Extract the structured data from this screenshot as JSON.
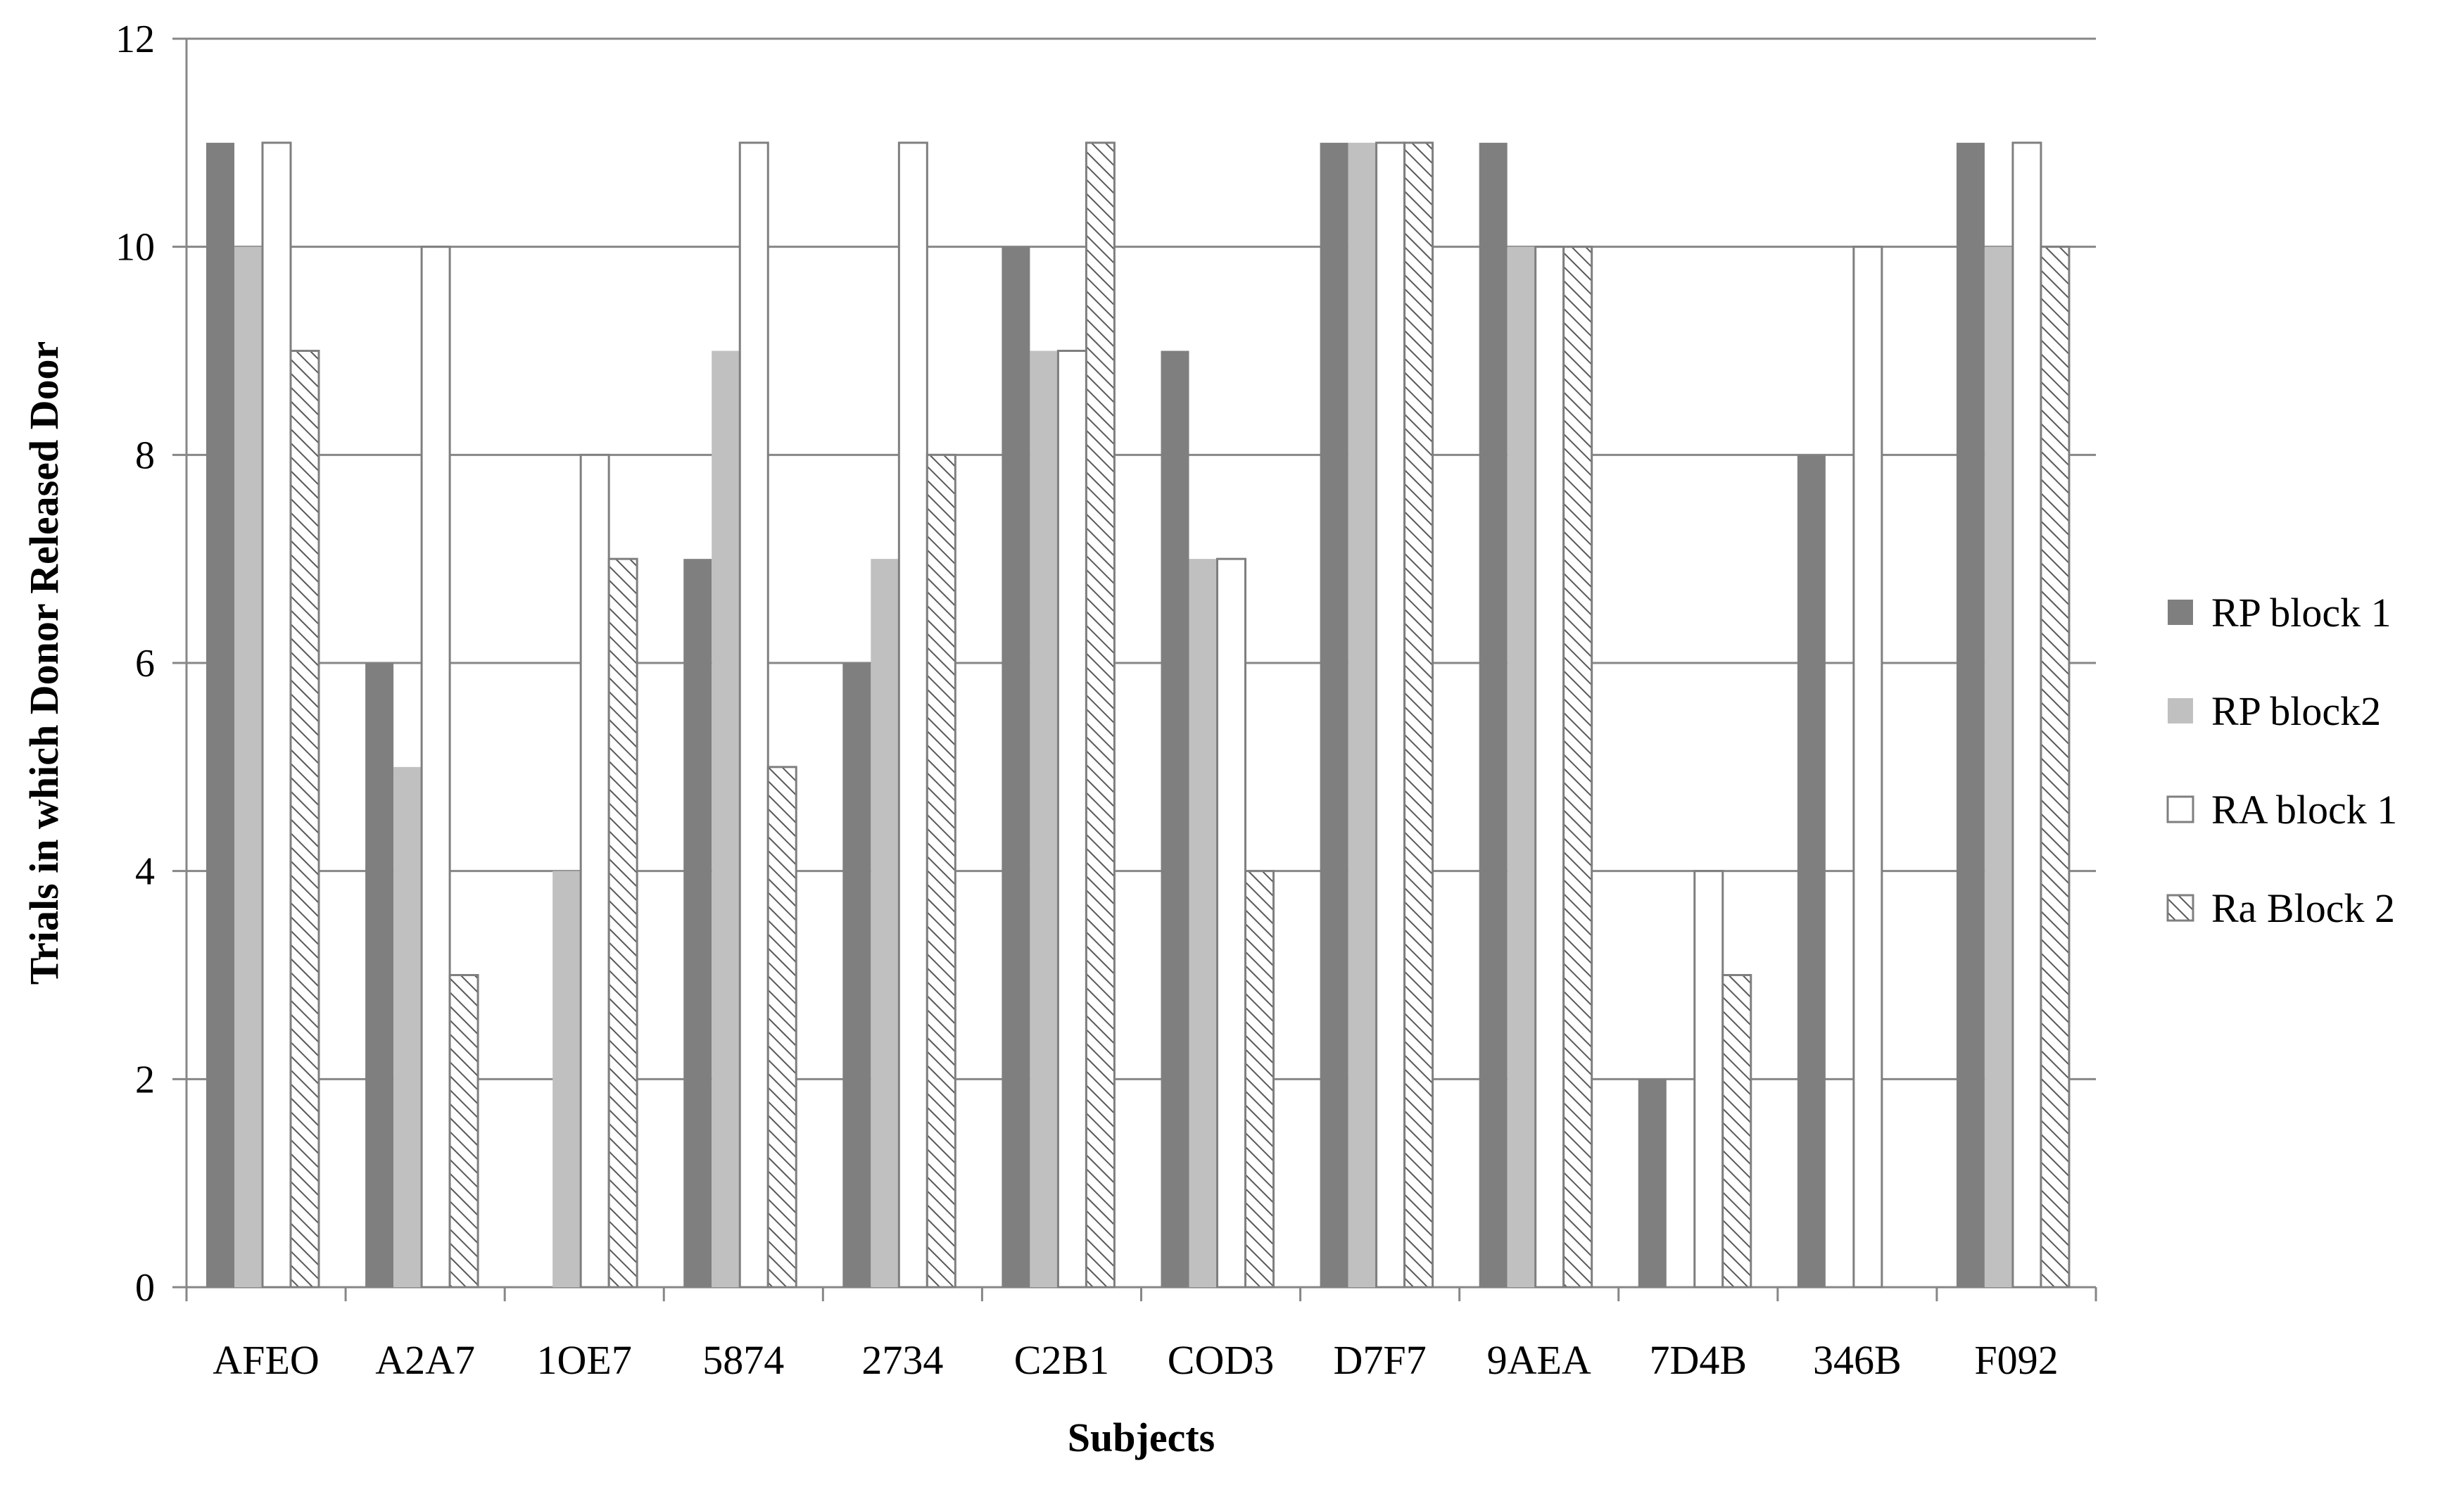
{
  "chart_data": {
    "type": "bar",
    "title": "",
    "xlabel": "Subjects",
    "ylabel": "Trials in which Donor Released Door",
    "ylim": [
      0,
      12
    ],
    "yticks": [
      0,
      2,
      4,
      6,
      8,
      10,
      12
    ],
    "grid": true,
    "legend_position": "right",
    "categories": [
      "AFEO",
      "A2A7",
      "1OE7",
      "5874",
      "2734",
      "C2B1",
      "COD3",
      "D7F7",
      "9AEA",
      "7D4B",
      "346B",
      "F092"
    ],
    "series": [
      {
        "name": "RP block 1",
        "values": [
          11,
          6,
          0,
          7,
          6,
          10,
          9,
          11,
          11,
          2,
          8,
          11
        ],
        "color": "#7f7f7f",
        "pattern": "solid"
      },
      {
        "name": "RP block2",
        "values": [
          10,
          5,
          4,
          9,
          7,
          9,
          7,
          11,
          10,
          0,
          0,
          10
        ],
        "color": "#c0c0c0",
        "pattern": "solid"
      },
      {
        "name": "RA block 1",
        "values": [
          11,
          10,
          8,
          11,
          11,
          9,
          7,
          11,
          10,
          4,
          10,
          11
        ],
        "color": "#ffffff",
        "pattern": "outline"
      },
      {
        "name": "Ra Block 2",
        "values": [
          9,
          3,
          7,
          5,
          8,
          11,
          4,
          11,
          10,
          3,
          0,
          10
        ],
        "color": "#ffffff",
        "pattern": "hatch"
      }
    ]
  }
}
